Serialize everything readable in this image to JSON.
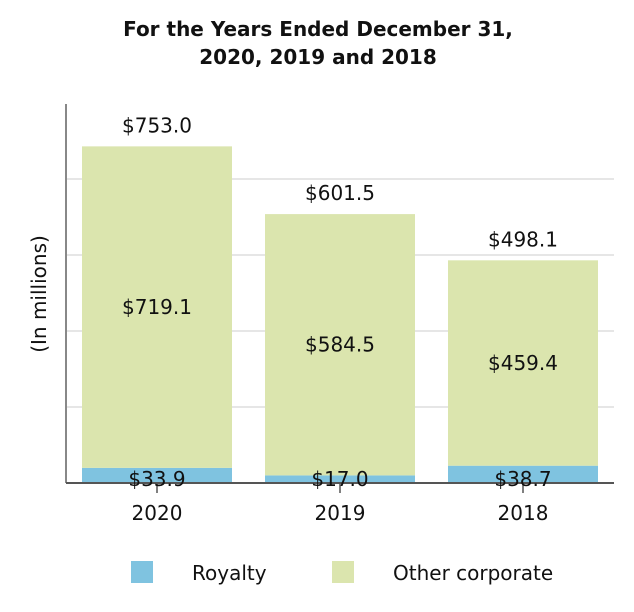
{
  "chart_data": {
    "type": "bar",
    "stacked": true,
    "title": [
      "For the Years Ended December 31,",
      "2020, 2019 and 2018"
    ],
    "ylabel": "(In millions)",
    "xlabel": "",
    "categories": [
      "2020",
      "2019",
      "2018"
    ],
    "series": [
      {
        "name": "Royalty",
        "color": "#7fc3e0",
        "values": [
          33.9,
          17.0,
          38.7
        ],
        "labels": [
          "$33.9",
          "$17.0",
          "$38.7"
        ]
      },
      {
        "name": "Other corporate",
        "color": "#dbe5ae",
        "values": [
          719.1,
          584.5,
          459.4
        ],
        "labels": [
          "$719.1",
          "$584.5",
          "$459.4"
        ]
      }
    ],
    "totals": [
      753.0,
      601.5,
      498.1
    ],
    "total_labels": [
      "$753.0",
      "$601.5",
      "$498.1"
    ],
    "ylim": [
      0,
      850
    ],
    "grid_values": [
      170,
      340,
      510,
      680
    ],
    "grid": true,
    "legend_position": "bottom"
  }
}
